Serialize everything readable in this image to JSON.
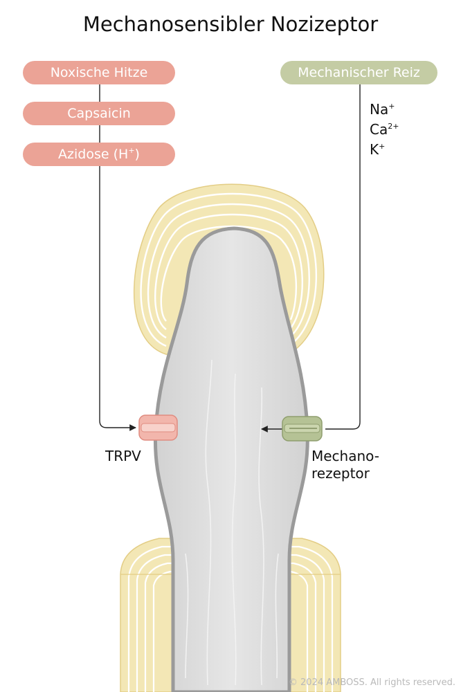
{
  "title": "Mechanosensibler Nozizeptor",
  "stimuli_left": [
    {
      "label": "Noxische Hitze"
    },
    {
      "label": "Capsaicin"
    },
    {
      "label": "Azidose (H",
      "sup": "+",
      "suffix": ")"
    }
  ],
  "stimulus_right": {
    "label": "Mechanischer Reiz"
  },
  "ions": [
    {
      "base": "Na",
      "sup": "+"
    },
    {
      "base": "Ca",
      "sup": "2+"
    },
    {
      "base": "K",
      "sup": "+"
    }
  ],
  "channels": {
    "trpv_label": "TRPV",
    "mechano_label_line1": "Mechano-",
    "mechano_label_line2": "rezeptor"
  },
  "copyright": "© 2024 AMBOSS. All rights reserved.",
  "colors": {
    "pill_red": "#eba396",
    "pill_green": "#c4cca4",
    "axon_fill": "#dcdcdc",
    "axon_stroke": "#9a9a9a",
    "capsule": "#f3e7b5",
    "trpv_channel": "#f2b6ac",
    "mechano_channel": "#b5c295"
  }
}
